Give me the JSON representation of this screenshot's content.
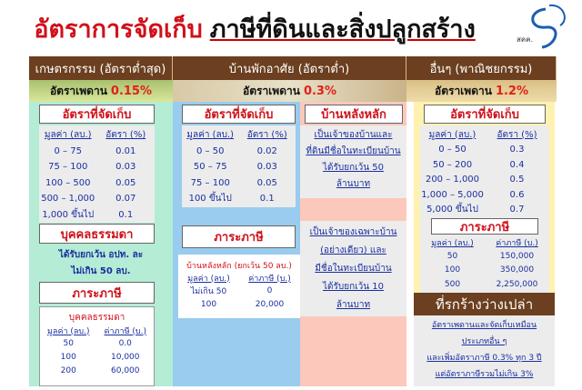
{
  "title": {
    "part1": "อัตราการจัดเก็บ",
    "part2": "ภาษีที่ดินและสิ่งปลูกสร้าง"
  },
  "logo": {
    "text": "สคค."
  },
  "columns": {
    "agri": {
      "header": "เกษตรกรรม (อัตราต่ำสุด)",
      "ceiling_label": "อัตราเพดาน",
      "ceiling": "0.15%",
      "rate_heading": "อัตราที่จัดเก็บ",
      "rate_cols": [
        "มูลค่า (ลบ.)",
        "อัตรา (%)"
      ],
      "rates": [
        [
          "0 – 75",
          "0.01"
        ],
        [
          "75 – 100",
          "0.03"
        ],
        [
          "100 – 500",
          "0.05"
        ],
        [
          "500 – 1,000",
          "0.07"
        ],
        [
          "1,000 ขึ้นไป",
          "0.1"
        ]
      ],
      "person_heading": "บุคคลธรรมดา",
      "person_note": [
        "ได้รับยกเว้น อปท. ละ",
        "ไม่เกิน 50 ลบ."
      ],
      "burden_heading": "ภาระภาษี",
      "burden_sub": "บุคคลธรรมดา",
      "burden_cols": [
        "มูลค่า (ลบ.)",
        "ค่าภาษี (บ.)"
      ],
      "burden": [
        [
          "50",
          "0.0"
        ],
        [
          "100",
          "10,000"
        ],
        [
          "200",
          "60,000"
        ]
      ]
    },
    "res": {
      "header": "บ้านพักอาศัย (อัตราต่ำ)",
      "ceiling_label": "อัตราเพดาน",
      "ceiling": "0.3%",
      "rate_heading": "อัตราที่จัดเก็บ",
      "rate_cols": [
        "มูลค่า (ลบ.)",
        "อัตรา (%)"
      ],
      "rates": [
        [
          "0 – 50",
          "0.02"
        ],
        [
          "50 – 75",
          "0.03"
        ],
        [
          "75 – 100",
          "0.05"
        ],
        [
          "100 ขึ้นไป",
          "0.1"
        ]
      ],
      "burden_heading": "ภาระภาษี",
      "burden_sub": "บ้านหลังหลัก (ยกเว้น 50 ลบ.)",
      "burden_cols": [
        "มูลค่า (ลบ.)",
        "ค่าภาษี (บ.)"
      ],
      "burden": [
        [
          "ไม่เกิน 50",
          "0"
        ],
        [
          "100",
          "20,000"
        ]
      ],
      "main_house_heading": "บ้านหลังหลัก",
      "exempt1": [
        "เป็นเจ้าของบ้านและ",
        "ที่ดินมีชื่อในทะเบียนบ้าน",
        "ได้รับยกเว้น 50",
        "ล้านบาท"
      ],
      "exempt2": [
        "เป็นเจ้าของเฉพาะบ้าน",
        "(อย่างเดียว) และ",
        "มีชื่อในทะเบียนบ้าน",
        "ได้รับยกเว้น 10",
        "ล้านบาท"
      ]
    },
    "other": {
      "header": "อื่นๆ (พาณิชยกรรม)",
      "ceiling_label": "อัตราเพดาน",
      "ceiling": "1.2%",
      "rate_heading": "อัตราที่จัดเก็บ",
      "rate_cols": [
        "มูลค่า (ลบ.)",
        "อัตรา (%)"
      ],
      "rates": [
        [
          "0 – 50",
          "0.3"
        ],
        [
          "50 – 200",
          "0.4"
        ],
        [
          "200 – 1,000",
          "0.5"
        ],
        [
          "1,000 – 5,000",
          "0.6"
        ],
        [
          "5,000 ขึ้นไป",
          "0.7"
        ]
      ],
      "burden_heading": "ภาระภาษี",
      "burden_cols": [
        "มูลค่า (ลบ.)",
        "ค่าภาษี (บ.)"
      ],
      "burden": [
        [
          "50",
          "150,000"
        ],
        [
          "100",
          "350,000"
        ],
        [
          "500",
          "2,250,000"
        ]
      ],
      "vacant_heading": "ที่รกร้างว่างเปล่า",
      "vacant_note": [
        "อัตราเพดานและจัดเก็บเหมือน",
        "ประเภทอื่น ๆ",
        "และเพิ่มอัตราภาษี 0.3% ทุก 3 ปี",
        "แต่อัตราภาษีรวมไม่เกิน 3%"
      ]
    }
  }
}
